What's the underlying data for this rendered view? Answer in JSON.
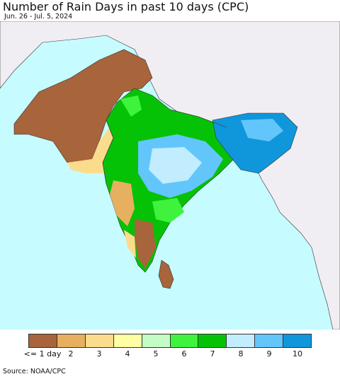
{
  "header": {
    "title": "Number of Rain Days in past 10 days (CPC)",
    "date_range": "Jun. 26 - Jul. 5, 2024"
  },
  "map": {
    "ocean_color": "#c6fbff",
    "land_outside_color": "#f1eef3",
    "border_color": "#333333"
  },
  "legend": {
    "items": [
      {
        "label": "<= 1 day",
        "color": "#a8643a"
      },
      {
        "label": "2",
        "color": "#e6b060"
      },
      {
        "label": "3",
        "color": "#fbdc8d"
      },
      {
        "label": "4",
        "color": "#fefea2"
      },
      {
        "label": "5",
        "color": "#c4fcc6"
      },
      {
        "label": "6",
        "color": "#3ef23d"
      },
      {
        "label": "7",
        "color": "#06c206"
      },
      {
        "label": "8",
        "color": "#c1edff"
      },
      {
        "label": "9",
        "color": "#62c6fb"
      },
      {
        "label": "10",
        "color": "#1096db"
      }
    ]
  },
  "footer": {
    "source": "Source: NOAA/CPC"
  }
}
